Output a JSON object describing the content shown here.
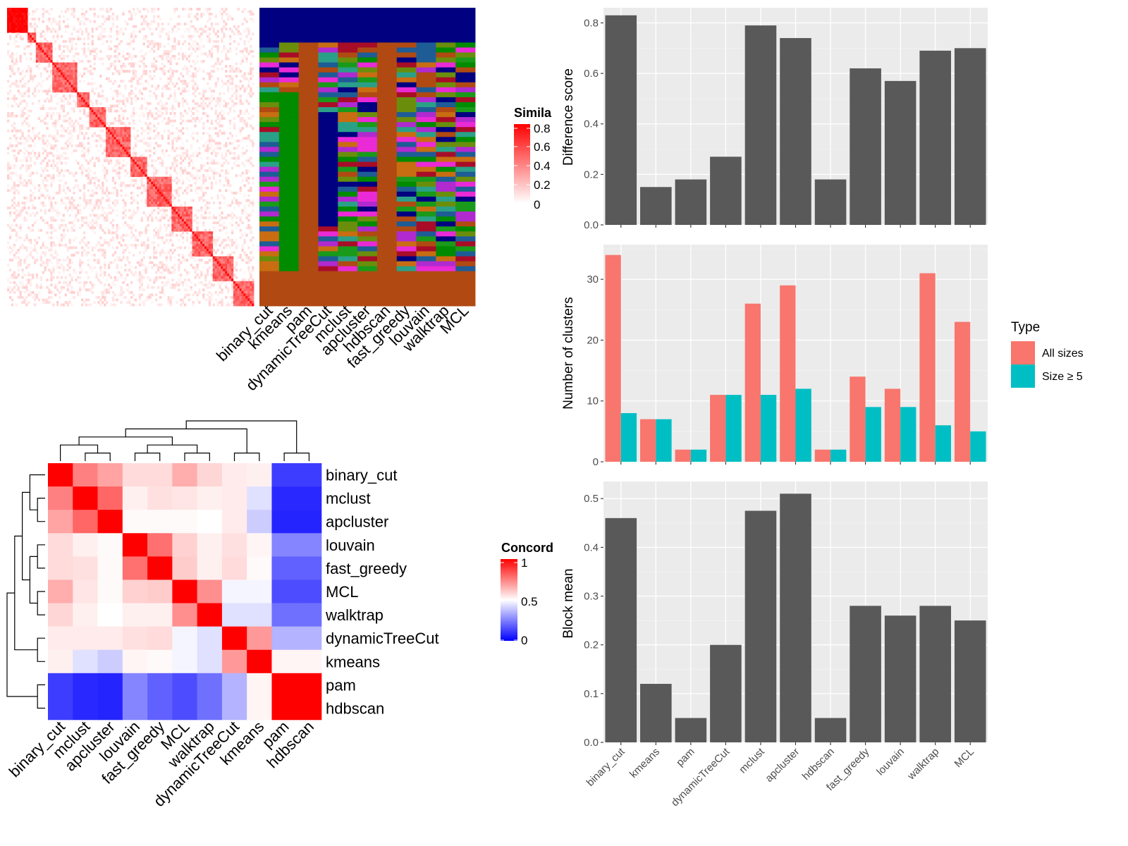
{
  "colors": {
    "bar_gray": "#595959",
    "all_sizes": "#F8766D",
    "size_ge5": "#00BFC4",
    "conc_low": "#0000FF",
    "conc_mid": "#FFFFFF",
    "conc_high": "#FF0000"
  },
  "chart_data": [
    {
      "id": "similarity_heatmap",
      "type": "heatmap",
      "legend_title": "Simila",
      "legend_ticks": [
        "0.8",
        "0.6",
        "0.4",
        "0.2",
        "0"
      ],
      "method_labels": [
        "binary_cut",
        "kmeans",
        "pam",
        "dynamicTreeCut",
        "mclust",
        "apcluster",
        "hdbscan",
        "fast_greedy",
        "louvain",
        "walktrap",
        "MCL"
      ]
    },
    {
      "id": "concordance_heatmap",
      "type": "heatmap",
      "legend_title": "Concord",
      "legend_ticks": [
        "1",
        "0.5",
        "0"
      ],
      "labels": [
        "binary_cut",
        "mclust",
        "apcluster",
        "louvain",
        "fast_greedy",
        "MCL",
        "walktrap",
        "dynamicTreeCut",
        "kmeans",
        "pam",
        "hdbscan"
      ],
      "values": [
        [
          1.0,
          0.75,
          0.68,
          0.57,
          0.57,
          0.66,
          0.58,
          0.54,
          0.53,
          0.12,
          0.12
        ],
        [
          0.75,
          1.0,
          0.8,
          0.53,
          0.56,
          0.55,
          0.53,
          0.54,
          0.44,
          0.08,
          0.08
        ],
        [
          0.68,
          0.8,
          1.0,
          0.51,
          0.51,
          0.51,
          0.5,
          0.54,
          0.4,
          0.07,
          0.07
        ],
        [
          0.57,
          0.53,
          0.51,
          1.0,
          0.78,
          0.59,
          0.53,
          0.56,
          0.52,
          0.26,
          0.26
        ],
        [
          0.57,
          0.56,
          0.51,
          0.78,
          1.0,
          0.6,
          0.53,
          0.57,
          0.51,
          0.19,
          0.19
        ],
        [
          0.66,
          0.55,
          0.51,
          0.59,
          0.6,
          1.0,
          0.72,
          0.48,
          0.48,
          0.15,
          0.15
        ],
        [
          0.58,
          0.53,
          0.5,
          0.53,
          0.53,
          0.72,
          1.0,
          0.44,
          0.44,
          0.22,
          0.22
        ],
        [
          0.54,
          0.54,
          0.54,
          0.56,
          0.57,
          0.48,
          0.44,
          1.0,
          0.7,
          0.35,
          0.35
        ],
        [
          0.53,
          0.44,
          0.4,
          0.52,
          0.51,
          0.48,
          0.44,
          0.7,
          1.0,
          0.52,
          0.52
        ],
        [
          0.12,
          0.08,
          0.07,
          0.26,
          0.19,
          0.15,
          0.22,
          0.35,
          0.52,
          1.0,
          1.0
        ],
        [
          0.12,
          0.08,
          0.07,
          0.26,
          0.19,
          0.15,
          0.22,
          0.35,
          0.52,
          1.0,
          1.0
        ]
      ]
    },
    {
      "id": "difference_score",
      "type": "bar",
      "categories": [
        "binary_cut",
        "kmeans",
        "pam",
        "dynamicTreeCut",
        "mclust",
        "apcluster",
        "hdbscan",
        "fast_greedy",
        "louvain",
        "walktrap",
        "MCL"
      ],
      "values": [
        0.83,
        0.15,
        0.18,
        0.27,
        0.79,
        0.74,
        0.18,
        0.62,
        0.57,
        0.69,
        0.7
      ],
      "ylabel": "Difference score",
      "ylim": [
        0,
        0.86
      ],
      "yticks": [
        "0.0",
        "0.2",
        "0.4",
        "0.6",
        "0.8"
      ],
      "show_x_labels": false,
      "grid": true
    },
    {
      "id": "number_of_clusters",
      "type": "bar",
      "categories": [
        "binary_cut",
        "kmeans",
        "pam",
        "dynamicTreeCut",
        "mclust",
        "apcluster",
        "hdbscan",
        "fast_greedy",
        "louvain",
        "walktrap",
        "MCL"
      ],
      "series": [
        {
          "name": "All sizes",
          "values": [
            34,
            7,
            2,
            11,
            26,
            29,
            2,
            14,
            12,
            31,
            23
          ]
        },
        {
          "name": "Size ≥ 5",
          "values": [
            8,
            7,
            2,
            11,
            11,
            12,
            2,
            9,
            9,
            6,
            5
          ]
        }
      ],
      "ylabel": "Number of clusters",
      "ylim": [
        0,
        35.7
      ],
      "yticks": [
        "0",
        "10",
        "20",
        "30"
      ],
      "show_x_labels": false,
      "grid": true,
      "legend_title": "Type",
      "legend_position": "right"
    },
    {
      "id": "block_mean",
      "type": "bar",
      "categories": [
        "binary_cut",
        "kmeans",
        "pam",
        "dynamicTreeCut",
        "mclust",
        "apcluster",
        "hdbscan",
        "fast_greedy",
        "louvain",
        "walktrap",
        "MCL"
      ],
      "values": [
        0.46,
        0.12,
        0.05,
        0.2,
        0.475,
        0.51,
        0.05,
        0.28,
        0.26,
        0.28,
        0.25
      ],
      "ylabel": "Block mean",
      "ylim": [
        0,
        0.535
      ],
      "yticks": [
        "0.0",
        "0.1",
        "0.2",
        "0.3",
        "0.4",
        "0.5"
      ],
      "show_x_labels": true,
      "grid": true
    }
  ]
}
